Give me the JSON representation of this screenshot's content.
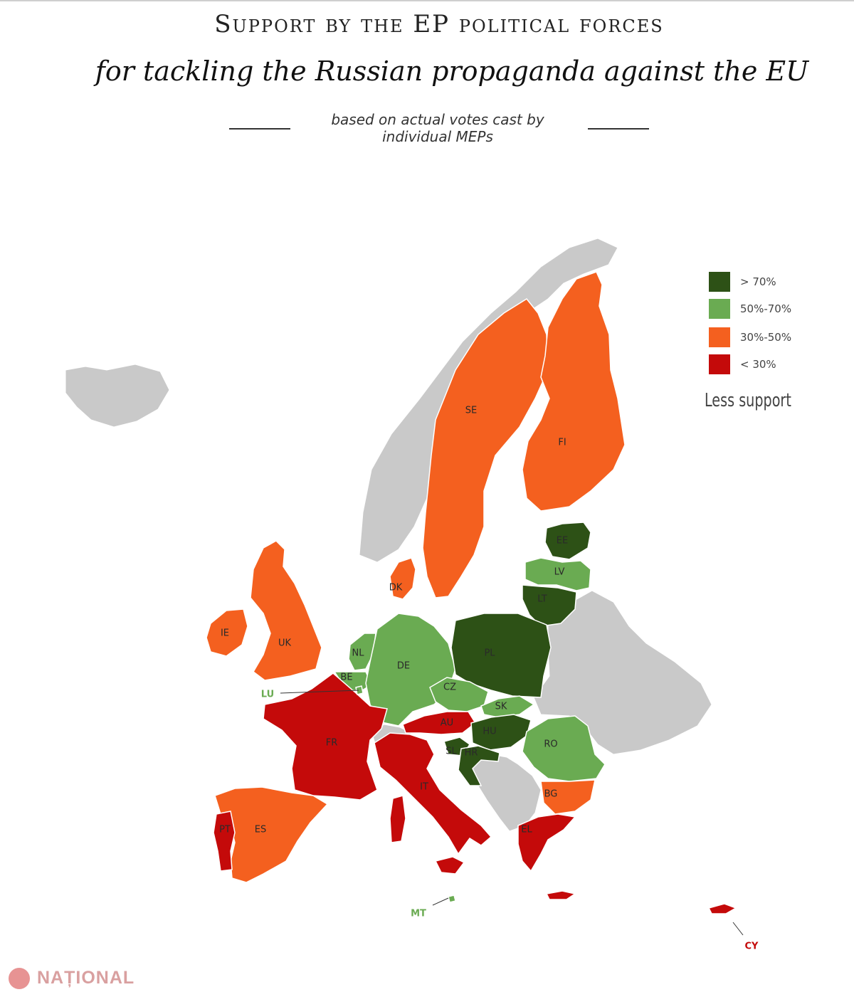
{
  "title": {
    "line1": "Support by the EP political forces",
    "line2": "for tackling the Russian propaganda against the EU",
    "subtitle_line1": "based on actual votes cast by",
    "subtitle_line2": "individual MEPs"
  },
  "legend": {
    "items": [
      {
        "label": "> 70%",
        "color": "#2d5116"
      },
      {
        "label": "50%-70%",
        "color": "#6aab52"
      },
      {
        "label": "30%-50%",
        "color": "#f4601f"
      },
      {
        "label": "< 30%",
        "color": "#c40a0a"
      }
    ],
    "note": "Less support"
  },
  "map_colors": {
    "no_data": "#c9c9c9",
    "callout_green": "#6aab52",
    "callout_red": "#c40a0a"
  },
  "countries": [
    {
      "code": "SE",
      "category": "30%-50%"
    },
    {
      "code": "FI",
      "category": "30%-50%"
    },
    {
      "code": "EE",
      "category": "> 70%"
    },
    {
      "code": "LV",
      "category": "50%-70%"
    },
    {
      "code": "LT",
      "category": "> 70%"
    },
    {
      "code": "DK",
      "category": "30%-50%"
    },
    {
      "code": "IE",
      "category": "30%-50%"
    },
    {
      "code": "UK",
      "category": "30%-50%"
    },
    {
      "code": "NL",
      "category": "50%-70%"
    },
    {
      "code": "BE",
      "category": "50%-70%"
    },
    {
      "code": "LU",
      "category": "50%-70%"
    },
    {
      "code": "DE",
      "category": "50%-70%"
    },
    {
      "code": "PL",
      "category": "> 70%"
    },
    {
      "code": "CZ",
      "category": "50%-70%"
    },
    {
      "code": "SK",
      "category": "50%-70%"
    },
    {
      "code": "AU",
      "category": "< 30%"
    },
    {
      "code": "HU",
      "category": "> 70%"
    },
    {
      "code": "SL",
      "category": "> 70%"
    },
    {
      "code": "HR",
      "category": "> 70%"
    },
    {
      "code": "RO",
      "category": "50%-70%"
    },
    {
      "code": "BG",
      "category": "30%-50%"
    },
    {
      "code": "FR",
      "category": "< 30%"
    },
    {
      "code": "IT",
      "category": "< 30%"
    },
    {
      "code": "ES",
      "category": "30%-50%"
    },
    {
      "code": "PT",
      "category": "< 30%"
    },
    {
      "code": "EL",
      "category": "< 30%"
    },
    {
      "code": "MT",
      "category": "50%-70%"
    },
    {
      "code": "CY",
      "category": "< 30%"
    }
  ],
  "watermark": "NAȚIONAL"
}
